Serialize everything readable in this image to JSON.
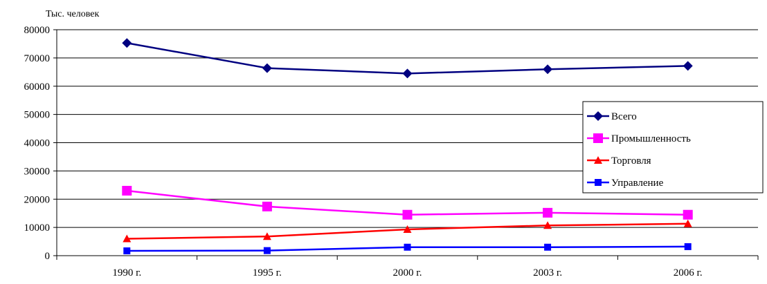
{
  "chart_data": {
    "type": "line",
    "ylabel": "Тыс. человек",
    "xlabel": "",
    "title": "",
    "categories": [
      "1990 г.",
      "1995 г.",
      "2000 г.",
      "2003 г.",
      "2006 г."
    ],
    "ylim": [
      0,
      80000
    ],
    "ytick_step": 10000,
    "yticks": [
      "0",
      "10000",
      "20000",
      "30000",
      "40000",
      "50000",
      "60000",
      "70000",
      "80000"
    ],
    "grid": "horizontal",
    "legend_position": "right",
    "series": [
      {
        "name": "Всего",
        "color": "#000080",
        "marker": "diamond",
        "values": [
          75300,
          66400,
          64500,
          66000,
          67200
        ]
      },
      {
        "name": "Промышленность",
        "color": "#FF00FF",
        "marker": "square",
        "values": [
          23000,
          17400,
          14500,
          15200,
          14500
        ]
      },
      {
        "name": "Торговля",
        "color": "#FF0000",
        "marker": "triangle",
        "values": [
          6000,
          6800,
          9300,
          10700,
          11300
        ]
      },
      {
        "name": "Управление",
        "color": "#0000FF",
        "marker": "square-small",
        "values": [
          1700,
          1800,
          3000,
          3000,
          3200
        ]
      }
    ]
  }
}
